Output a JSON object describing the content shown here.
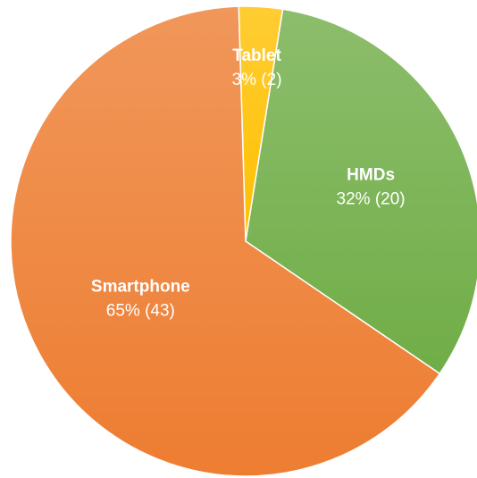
{
  "chart_data": {
    "type": "pie",
    "categories": [
      "Tablet",
      "HMDs",
      "Smartphone"
    ],
    "values": [
      3,
      32,
      65
    ],
    "value_labels": [
      "3% (2)",
      "32% (20)",
      "65% (43)"
    ],
    "colors": [
      "#ffc000",
      "#70ad47",
      "#ed7d31"
    ]
  }
}
